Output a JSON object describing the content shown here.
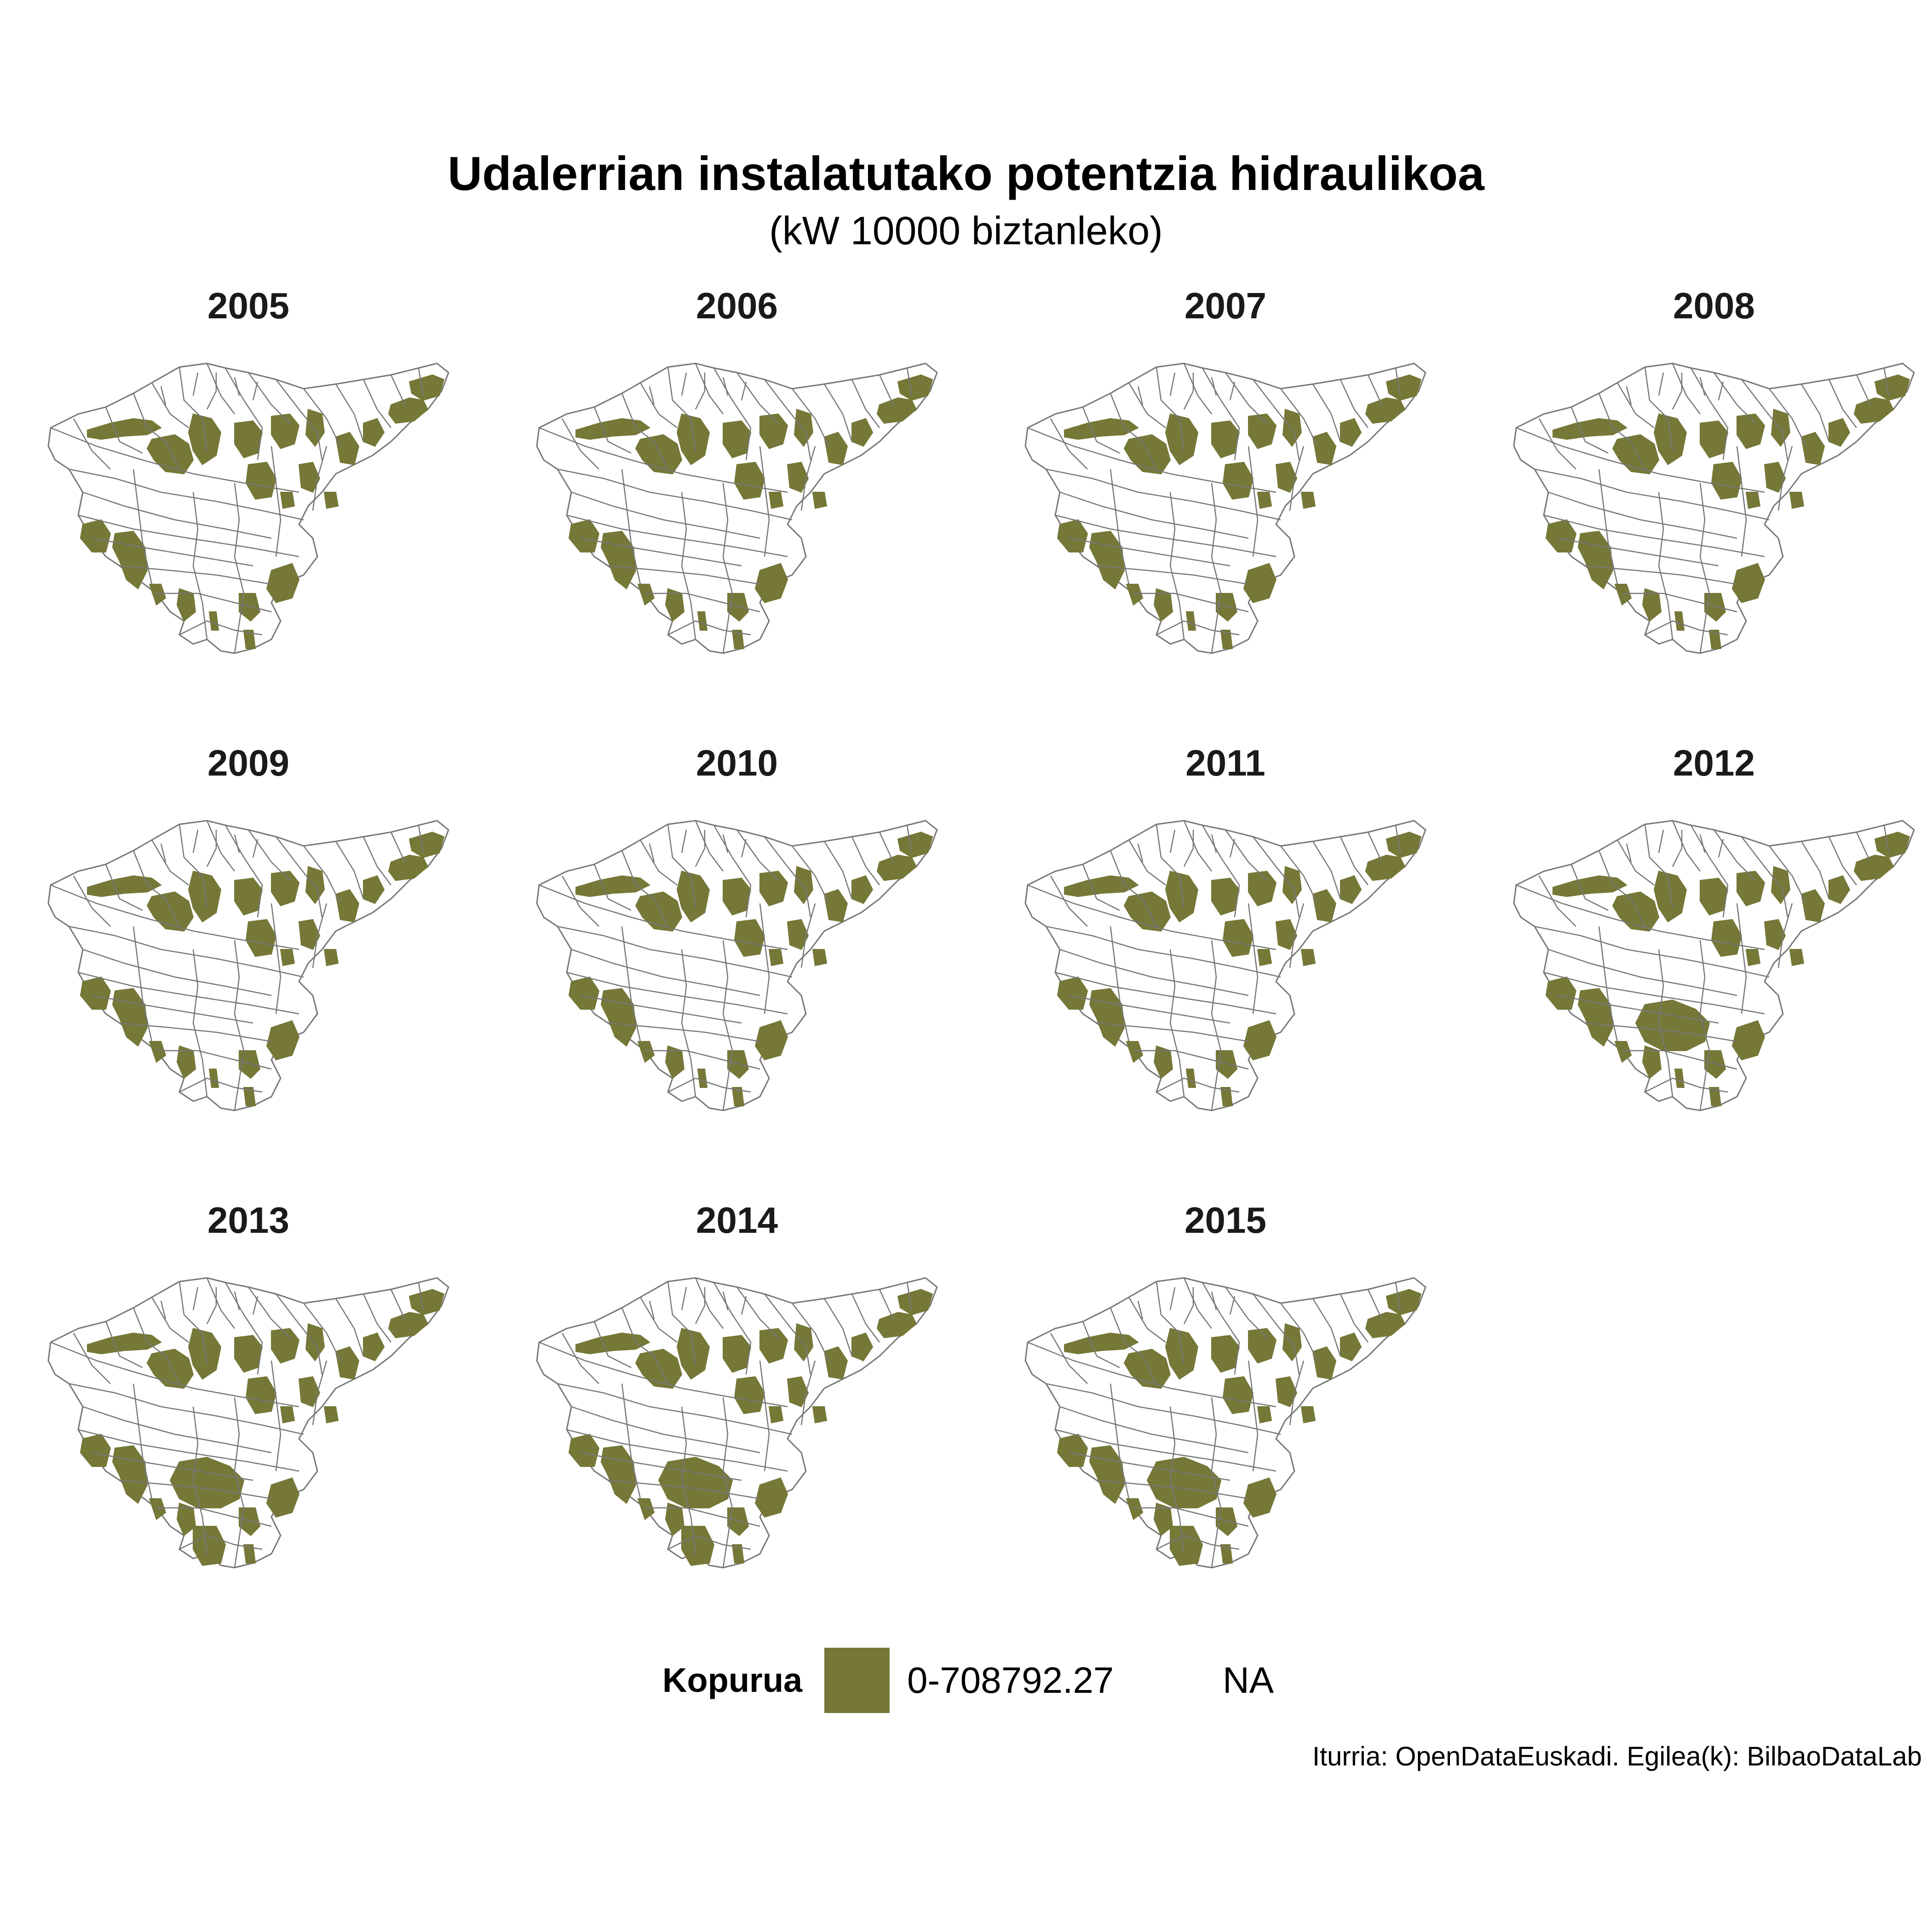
{
  "title": "Udalerrian instalatutako potentzia hidraulikoa",
  "subtitle": "(kW 10000 biztanleko)",
  "colors": {
    "fill": "#757837",
    "na_fill": "#ffffff",
    "border": "#777777"
  },
  "panels": [
    {
      "year": "2005"
    },
    {
      "year": "2006"
    },
    {
      "year": "2007"
    },
    {
      "year": "2008"
    },
    {
      "year": "2009"
    },
    {
      "year": "2010"
    },
    {
      "year": "2011"
    },
    {
      "year": "2012"
    },
    {
      "year": "2013"
    },
    {
      "year": "2014"
    },
    {
      "year": "2015"
    }
  ],
  "legend": {
    "title": "Kopurua",
    "items": [
      {
        "label": "0-708792.27",
        "color": "#757837"
      },
      {
        "label": "NA",
        "color": "#ffffff"
      }
    ]
  },
  "caption": "Iturria: OpenDataEuskadi. Egilea(k): BilbaoDataLab"
}
